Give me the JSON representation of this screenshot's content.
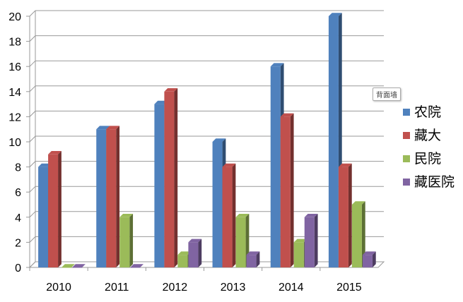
{
  "chart_data": {
    "type": "bar",
    "style": "3d-clustered-column",
    "categories": [
      "2010",
      "2011",
      "2012",
      "2013",
      "2014",
      "2015"
    ],
    "series": [
      {
        "name": "农院",
        "color": "#4f81bd",
        "values": [
          8,
          11,
          13,
          10,
          16,
          20
        ]
      },
      {
        "name": "藏大",
        "color": "#c0504d",
        "values": [
          9,
          11,
          14,
          8,
          12,
          8
        ]
      },
      {
        "name": "民院",
        "color": "#9bbb59",
        "values": [
          0,
          4,
          1,
          4,
          2,
          5
        ]
      },
      {
        "name": "藏医院",
        "color": "#8064a2",
        "values": [
          0,
          0,
          2,
          1,
          4,
          1
        ]
      }
    ],
    "ylim": [
      0,
      20
    ],
    "yticks": [
      0,
      2,
      4,
      6,
      8,
      10,
      12,
      14,
      16,
      18,
      20
    ],
    "grid": true,
    "legend": "right",
    "title": "",
    "xlabel": "",
    "ylabel": ""
  },
  "tooltip": "背面墙"
}
